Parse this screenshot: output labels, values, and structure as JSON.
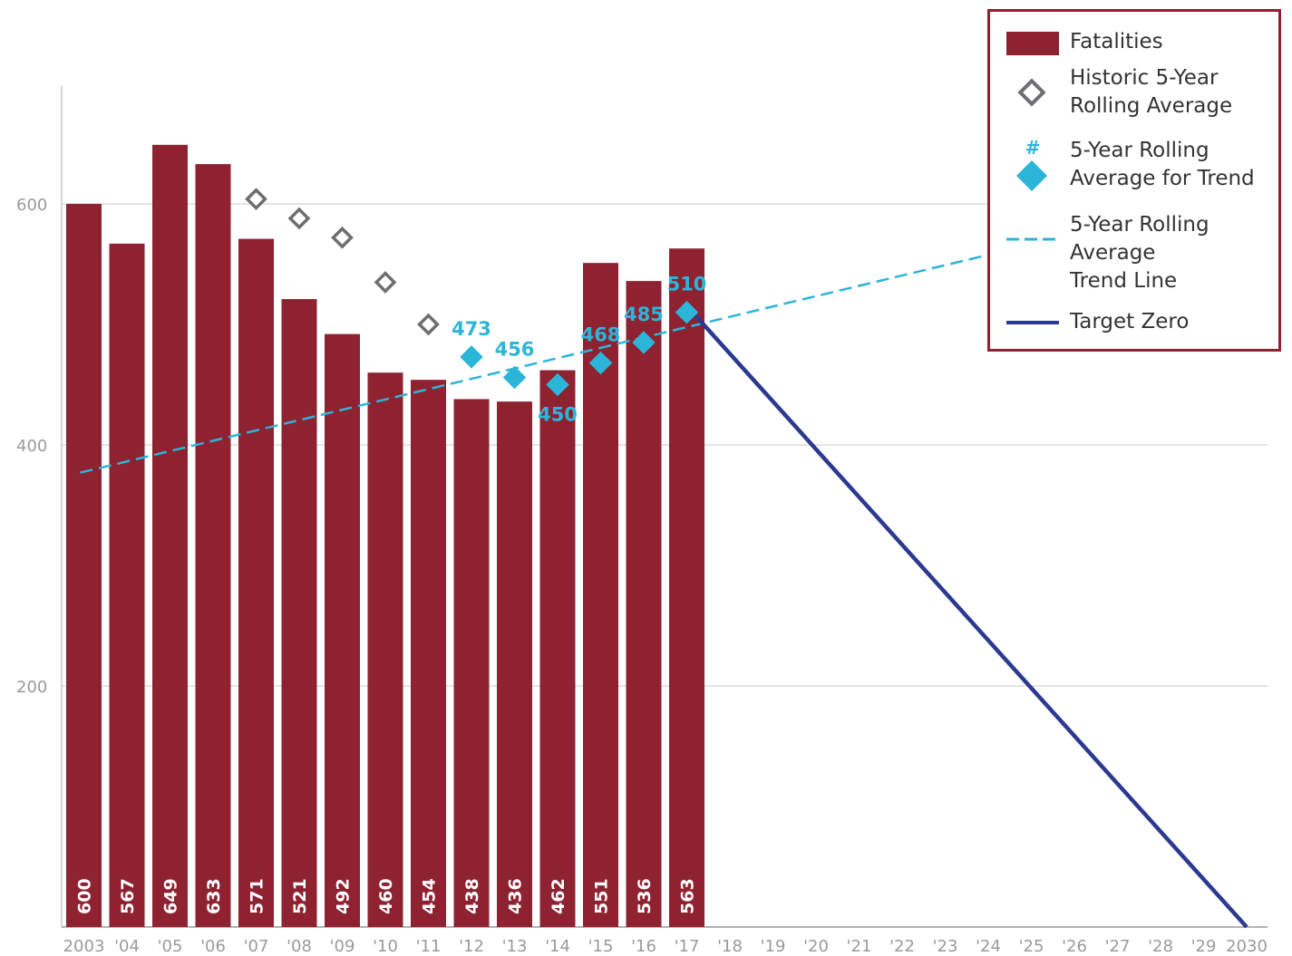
{
  "chart_data": {
    "type": "bar",
    "title": "",
    "xlabel": "",
    "ylabel": "",
    "ylim": [
      0,
      700
    ],
    "yticks": [
      200,
      400,
      600
    ],
    "grid": true,
    "legend_position": "top-right",
    "x_tick_labels": [
      "2003",
      "'04",
      "'05",
      "'06",
      "'07",
      "'08",
      "'09",
      "'10",
      "'11",
      "'12",
      "'13",
      "'14",
      "'15",
      "'16",
      "'17",
      "'18",
      "'19",
      "'20",
      "'21",
      "'22",
      "'23",
      "'24",
      "'25",
      "'26",
      "'27",
      "'28",
      "'29",
      "2030"
    ],
    "x_years": [
      2003,
      2004,
      2005,
      2006,
      2007,
      2008,
      2009,
      2010,
      2011,
      2012,
      2013,
      2014,
      2015,
      2016,
      2017,
      2018,
      2019,
      2020,
      2021,
      2022,
      2023,
      2024,
      2025,
      2026,
      2027,
      2028,
      2029,
      2030
    ],
    "series": [
      {
        "name": "Fatalities",
        "kind": "bar",
        "color": "#8e2230",
        "x": [
          2003,
          2004,
          2005,
          2006,
          2007,
          2008,
          2009,
          2010,
          2011,
          2012,
          2013,
          2014,
          2015,
          2016,
          2017
        ],
        "values": [
          600,
          567,
          649,
          633,
          571,
          521,
          492,
          460,
          454,
          438,
          436,
          462,
          551,
          536,
          563
        ]
      },
      {
        "name": "Historic 5-Year Rolling Average",
        "kind": "diamond-outline",
        "color": "#6d6e71",
        "x": [
          2007,
          2008,
          2009,
          2010,
          2011
        ],
        "values": [
          604,
          588,
          572,
          535,
          500
        ]
      },
      {
        "name": "5-Year Rolling Average for Trend",
        "kind": "diamond-filled",
        "color": "#2bb5d9",
        "x": [
          2012,
          2013,
          2014,
          2015,
          2016,
          2017
        ],
        "values": [
          473,
          456,
          450,
          468,
          485,
          510
        ],
        "labels": [
          "473",
          "456",
          "450",
          "468",
          "485",
          "510"
        ]
      },
      {
        "name": "5-Year Rolling Average Trend Line",
        "kind": "dashed-line",
        "color": "#2bb5d9",
        "x": [
          2003,
          2017
        ],
        "values": [
          377,
          497
        ]
      },
      {
        "name": "Target Zero",
        "kind": "line",
        "color": "#2b3990",
        "x": [
          2017,
          2030
        ],
        "values": [
          507,
          0
        ]
      }
    ]
  },
  "legend": {
    "items": [
      {
        "label": "Fatalities",
        "symbol": "bar-swatch"
      },
      {
        "label": "Historic 5-Year\nRolling Average",
        "symbol": "diamond-outline"
      },
      {
        "label": "5-Year Rolling\nAverage for Trend",
        "symbol": "diamond-filled",
        "hash": "#"
      },
      {
        "label": "5-Year Rolling\nAverage\nTrend Line",
        "symbol": "dashed-line"
      },
      {
        "label": "Target Zero",
        "symbol": "solid-line"
      }
    ]
  }
}
